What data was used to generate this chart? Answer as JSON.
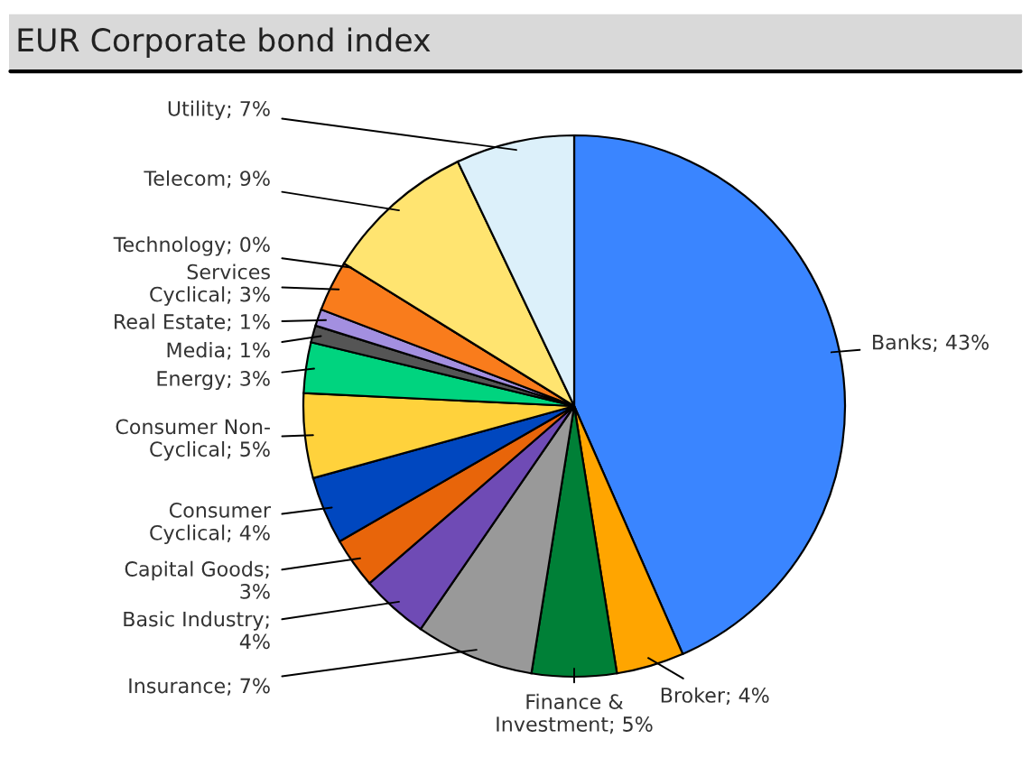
{
  "chart_data": {
    "type": "pie",
    "title": "EUR Corporate bond index",
    "categories": [
      "Banks; 43%",
      "Broker; 4%",
      "Finance &\nInvestment; 5%",
      "Insurance; 7%",
      "Basic Industry;\n4%",
      "Capital Goods;\n3%",
      "Consumer\nCyclical; 4%",
      "Consumer Non-\nCyclical; 5%",
      "Energy; 3%",
      "Media; 1%",
      "Real Estate; 1%",
      "Services\nCyclical; 3%",
      "Technology; 0%",
      "Telecom; 9%",
      "Utility; 7%"
    ],
    "values": [
      43,
      4,
      5,
      7,
      4,
      3,
      4,
      5,
      3,
      1,
      1,
      3,
      0,
      9,
      7
    ],
    "colors": [
      "#3a85ff",
      "#ffa500",
      "#008037",
      "#999999",
      "#6f4bb5",
      "#e8650a",
      "#0047bf",
      "#ffd23c",
      "#00d47f",
      "#555555",
      "#a38fe0",
      "#f97c1c",
      "#7fe89f",
      "#ffe470",
      "#dcf0fa"
    ]
  }
}
